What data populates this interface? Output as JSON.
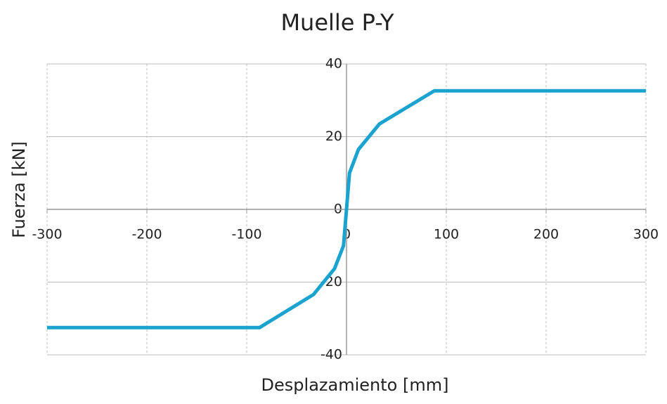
{
  "chart_data": {
    "type": "line",
    "title": "Muelle P-Y",
    "x_label": "Desplazamiento [mm]",
    "y_label": "Fuerza [kN]",
    "x": [
      -300,
      -87,
      -33,
      -12,
      -3,
      0,
      3,
      12,
      33,
      88,
      300
    ],
    "series": [
      {
        "name": "Muelle P-Y",
        "color": "#1ba3cf",
        "values": [
          -32.5,
          -32.5,
          -23.4,
          -16.3,
          -10,
          0,
          10,
          16.5,
          23.5,
          32.6,
          32.6
        ]
      }
    ],
    "xlim": [
      -300,
      300
    ],
    "xticks": [
      -300,
      -200,
      -100,
      0,
      100,
      200,
      300
    ],
    "ylim": [
      -40,
      40
    ],
    "yticks": [
      -40,
      -20,
      0,
      20,
      40
    ],
    "grid": true
  }
}
